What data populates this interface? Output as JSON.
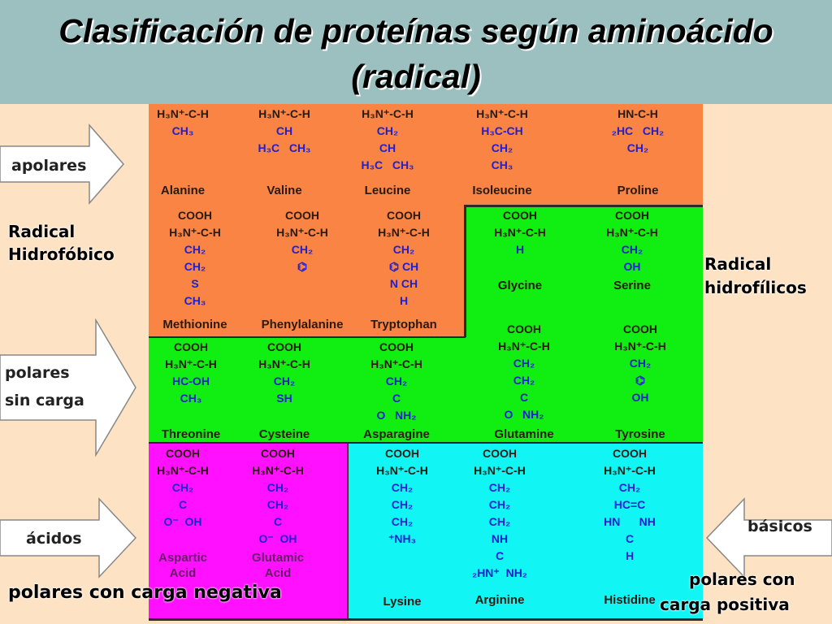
{
  "title": {
    "line1": "Clasificación de proteínas según aminoácido",
    "line2": "(radical)"
  },
  "arrows": {
    "apolares": "apolares",
    "polares_sin_carga_1": "polares",
    "polares_sin_carga_2": "sin carga",
    "acidos": "ácidos",
    "basicos": "básicos"
  },
  "side_labels": {
    "hidrofobico_1": "Radical",
    "hidrofobico_2": "Hidrofóbico",
    "hidrofilicos_1": "Radical",
    "hidrofilicos_2": "hidrofílicos",
    "negativa": "polares con carga negativa",
    "positiva_1": "polares con",
    "positiva_2": "carga positiva"
  },
  "amino_acids": [
    {
      "name": "Alanine",
      "group": "apolar",
      "structure": [
        "H₃N⁺-C-H",
        "CH₃"
      ]
    },
    {
      "name": "Valine",
      "group": "apolar",
      "structure": [
        "H₃N⁺-C-H",
        "CH",
        "H₃C   CH₃"
      ]
    },
    {
      "name": "Leucine",
      "group": "apolar",
      "structure": [
        "H₃N⁺-C-H",
        "CH₂",
        "CH",
        "H₃C   CH₃"
      ]
    },
    {
      "name": "Isoleucine",
      "group": "apolar",
      "structure": [
        "H₃N⁺-C-H",
        "H₃C-CH",
        "CH₂",
        "CH₃"
      ]
    },
    {
      "name": "Proline",
      "group": "apolar",
      "structure": [
        "HN-C-H",
        "₂HC   CH₂",
        "CH₂"
      ]
    },
    {
      "name": "Methionine",
      "group": "apolar",
      "structure": [
        "COOH",
        "H₃N⁺-C-H",
        "CH₂",
        "CH₂",
        "S",
        "CH₃"
      ]
    },
    {
      "name": "Phenylalanine",
      "group": "apolar",
      "structure": [
        "COOH",
        "H₃N⁺-C-H",
        "CH₂",
        "⌬"
      ]
    },
    {
      "name": "Tryptophan",
      "group": "apolar",
      "structure": [
        "COOH",
        "H₃N⁺-C-H",
        "CH₂",
        "⌬ CH",
        "N CH",
        "H"
      ]
    },
    {
      "name": "Glycine",
      "group": "polar",
      "structure": [
        "COOH",
        "H₃N⁺-C-H",
        "H"
      ]
    },
    {
      "name": "Serine",
      "group": "polar",
      "structure": [
        "COOH",
        "H₃N⁺-C-H",
        "CH₂",
        "OH"
      ]
    },
    {
      "name": "Threonine",
      "group": "polar",
      "structure": [
        "COOH",
        "H₃N⁺-C-H",
        "HC-OH",
        "CH₃"
      ]
    },
    {
      "name": "Cysteine",
      "group": "polar",
      "structure": [
        "COOH",
        "H₃N⁺-C-H",
        "CH₂",
        "SH"
      ]
    },
    {
      "name": "Asparagine",
      "group": "polar",
      "structure": [
        "COOH",
        "H₃N⁺-C-H",
        "CH₂",
        "C",
        "O   NH₂"
      ]
    },
    {
      "name": "Glutamine",
      "group": "polar",
      "structure": [
        "COOH",
        "H₃N⁺-C-H",
        "CH₂",
        "CH₂",
        "C",
        "O   NH₂"
      ]
    },
    {
      "name": "Tyrosine",
      "group": "polar",
      "structure": [
        "COOH",
        "H₃N⁺-C-H",
        "CH₂",
        "⌬",
        "OH"
      ]
    },
    {
      "name": "Aspartic Acid",
      "group": "acid",
      "structure": [
        "COOH",
        "H₃N⁺-C-H",
        "CH₂",
        "C",
        "O⁻  OH"
      ]
    },
    {
      "name": "Glutamic Acid",
      "group": "acid",
      "structure": [
        "COOH",
        "H₃N⁺-C-H",
        "CH₂",
        "CH₂",
        "C",
        "O⁻  OH"
      ]
    },
    {
      "name": "Lysine",
      "group": "basic",
      "structure": [
        "COOH",
        "H₃N⁺-C-H",
        "CH₂",
        "CH₂",
        "CH₂",
        "⁺NH₃"
      ]
    },
    {
      "name": "Arginine",
      "group": "basic",
      "structure": [
        "COOH",
        "H₃N⁺-C-H",
        "CH₂",
        "CH₂",
        "CH₂",
        "NH",
        "C",
        "₂HN⁺  NH₂"
      ]
    },
    {
      "name": "Histidine",
      "group": "basic",
      "structure": [
        "COOH",
        "H₃N⁺-C-H",
        "CH₂",
        "HC=C",
        "HN      NH",
        "C",
        "H"
      ]
    }
  ]
}
